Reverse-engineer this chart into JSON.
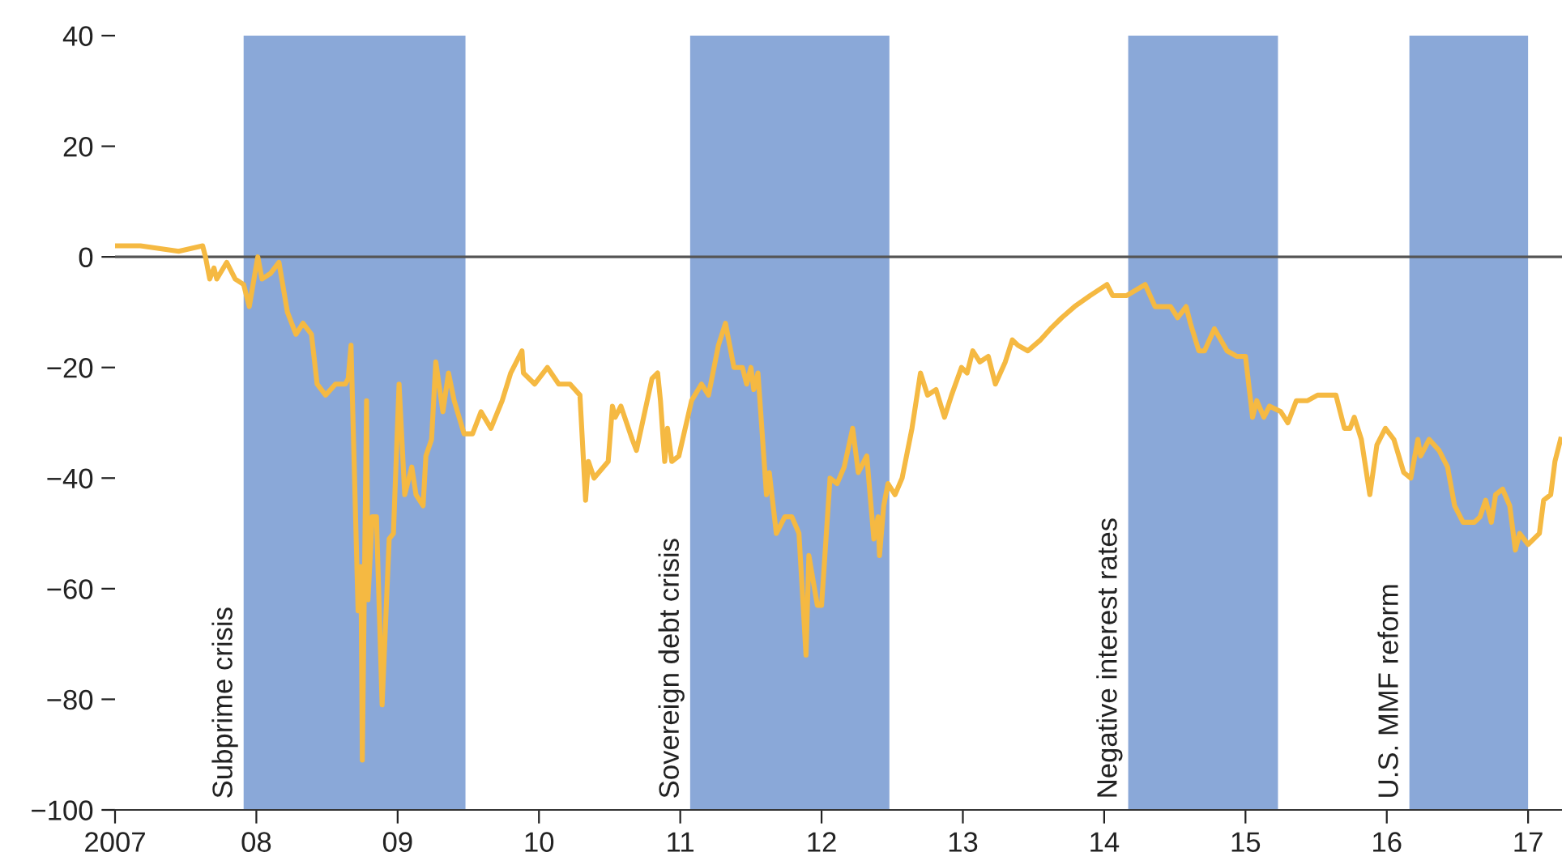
{
  "chart_data": {
    "type": "line",
    "color": "#f5b942",
    "x": [
      2007.0,
      2007.18,
      2007.45,
      2007.62,
      2007.64,
      2007.67,
      2007.7,
      2007.72,
      2007.79,
      2007.85,
      2007.91,
      2007.95,
      2008.01,
      2008.04,
      2008.1,
      2008.16,
      2008.22,
      2008.28,
      2008.33,
      2008.39,
      2008.43,
      2008.49,
      2008.56,
      2008.63,
      2008.65,
      2008.67,
      2008.72,
      2008.74,
      2008.75,
      2008.78,
      2008.79,
      2008.82,
      2008.85,
      2008.89,
      2008.94,
      2008.97,
      2009.01,
      2009.05,
      2009.1,
      2009.13,
      2009.18,
      2009.2,
      2009.24,
      2009.27,
      2009.32,
      2009.36,
      2009.4,
      2009.47,
      2009.53,
      2009.59,
      2009.66,
      2009.74,
      2009.8,
      2009.88,
      2009.89,
      2009.97,
      2010.06,
      2010.14,
      2010.22,
      2010.29,
      2010.33,
      2010.35,
      2010.39,
      2010.49,
      2010.52,
      2010.54,
      2010.58,
      2010.66,
      2010.69,
      2010.8,
      2010.84,
      2010.86,
      2010.89,
      2010.91,
      2010.94,
      2010.99,
      2011.08,
      2011.15,
      2011.2,
      2011.27,
      2011.32,
      2011.38,
      2011.44,
      2011.47,
      2011.5,
      2011.52,
      2011.55,
      2011.61,
      2011.63,
      2011.68,
      2011.74,
      2011.79,
      2011.84,
      2011.89,
      2011.91,
      2011.97,
      2012.0,
      2012.06,
      2012.11,
      2012.16,
      2012.22,
      2012.26,
      2012.32,
      2012.37,
      2012.4,
      2012.41,
      2012.44,
      2012.47,
      2012.52,
      2012.57,
      2012.64,
      2012.7,
      2012.75,
      2012.81,
      2012.87,
      2012.92,
      2012.99,
      2013.03,
      2013.07,
      2013.12,
      2013.18,
      2013.23,
      2013.3,
      2013.35,
      2013.39,
      2013.46,
      2013.55,
      2013.62,
      2013.7,
      2013.79,
      2013.9,
      2014.02,
      2014.06,
      2014.16,
      2014.29,
      2014.36,
      2014.47,
      2014.52,
      2014.58,
      2014.61,
      2014.67,
      2014.71,
      2014.78,
      2014.87,
      2014.94,
      2015.0,
      2015.05,
      2015.08,
      2015.13,
      2015.17,
      2015.25,
      2015.3,
      2015.36,
      2015.44,
      2015.51,
      2015.57,
      2015.64,
      2015.7,
      2015.74,
      2015.77,
      2015.82,
      2015.88,
      2015.93,
      2015.99,
      2016.05,
      2016.12,
      2016.17,
      2016.22,
      2016.24,
      2016.3,
      2016.37,
      2016.43,
      2016.48,
      2016.54,
      2016.62,
      2016.66,
      2016.7,
      2016.74,
      2016.77,
      2016.82,
      2016.87,
      2016.91,
      2016.94,
      2017.0,
      2017.08,
      2017.11,
      2017.16,
      2017.19,
      2017.23
    ],
    "values": [
      2,
      2,
      1,
      2,
      0,
      -4,
      -2,
      -4,
      -1,
      -4,
      -5,
      -9,
      0,
      -4,
      -3,
      -1,
      -10,
      -14,
      -12,
      -14,
      -23,
      -25,
      -23,
      -23,
      -22,
      -16,
      -64,
      -56,
      -91,
      -26,
      -62,
      -47,
      -47,
      -81,
      -51,
      -50,
      -23,
      -43,
      -38,
      -43,
      -45,
      -36,
      -33,
      -19,
      -28,
      -21,
      -26,
      -32,
      -32,
      -28,
      -31,
      -26,
      -21,
      -17,
      -21,
      -23,
      -20,
      -23,
      -23,
      -25,
      -44,
      -37,
      -40,
      -37,
      -27,
      -29,
      -27,
      -33,
      -35,
      -22,
      -21,
      -26,
      -37,
      -31,
      -37,
      -36,
      -26,
      -23,
      -25,
      -16,
      -12,
      -20,
      -20,
      -23,
      -20,
      -24,
      -21,
      -43,
      -39,
      -50,
      -47,
      -47,
      -50,
      -72,
      -54,
      -63,
      -63,
      -40,
      -41,
      -38,
      -31,
      -39,
      -36,
      -51,
      -47,
      -54,
      -45,
      -41,
      -43,
      -40,
      -31,
      -21,
      -25,
      -24,
      -29,
      -25,
      -20,
      -21,
      -17,
      -19,
      -18,
      -23,
      -19,
      -15,
      -16,
      -17,
      -15,
      -13,
      -11,
      -9,
      -7,
      -5,
      -7,
      -7,
      -5,
      -9,
      -9,
      -11,
      -9,
      -12,
      -17,
      -17,
      -13,
      -17,
      -18,
      -18,
      -29,
      -26,
      -29,
      -27,
      -28,
      -30,
      -26,
      -26,
      -25,
      -25,
      -25,
      -31,
      -31,
      -29,
      -33,
      -43,
      -34,
      -31,
      -33,
      -39,
      -40,
      -33,
      -36,
      -33,
      -35,
      -38,
      -45,
      -48,
      -48,
      -47,
      -44,
      -48,
      -43,
      -42,
      -45,
      -53,
      -50,
      -52,
      -50,
      -44,
      -43,
      -37,
      -33
    ],
    "xlim": [
      2007,
      2017.24
    ],
    "ylim": [
      -100,
      40
    ],
    "xticks": [
      {
        "value": 2007,
        "label": "2007"
      },
      {
        "value": 2008,
        "label": "08"
      },
      {
        "value": 2009,
        "label": "09"
      },
      {
        "value": 2010,
        "label": "10"
      },
      {
        "value": 2011,
        "label": "11"
      },
      {
        "value": 2012,
        "label": "12"
      },
      {
        "value": 2013,
        "label": "13"
      },
      {
        "value": 2014,
        "label": "14"
      },
      {
        "value": 2015,
        "label": "15"
      },
      {
        "value": 2016,
        "label": "16"
      },
      {
        "value": 2017,
        "label": "17"
      }
    ],
    "yticks": [
      {
        "value": -100,
        "label": "−100"
      },
      {
        "value": -80,
        "label": "−80"
      },
      {
        "value": -60,
        "label": "−60"
      },
      {
        "value": -40,
        "label": "−40"
      },
      {
        "value": -20,
        "label": "−20"
      },
      0,
      20,
      40
    ],
    "ref_lines": [
      {
        "axis": "y",
        "value": 0,
        "color": "#555555"
      }
    ],
    "bands": [
      {
        "axis": "x",
        "from": 2007.91,
        "to": 2009.48,
        "label": "Subprime crisis",
        "color": "#8aa8d8"
      },
      {
        "axis": "x",
        "from": 2011.07,
        "to": 2012.48,
        "label": "Sovereign debt crisis",
        "color": "#8aa8d8"
      },
      {
        "axis": "x",
        "from": 2014.17,
        "to": 2015.23,
        "label": "Negative interest rates",
        "color": "#8aa8d8"
      },
      {
        "axis": "x",
        "from": 2016.16,
        "to": 2017.0,
        "label": "U.S. MMF reform",
        "color": "#8aa8d8"
      }
    ],
    "grid": false,
    "legend": false,
    "marker": "none",
    "line_style": "solid"
  }
}
